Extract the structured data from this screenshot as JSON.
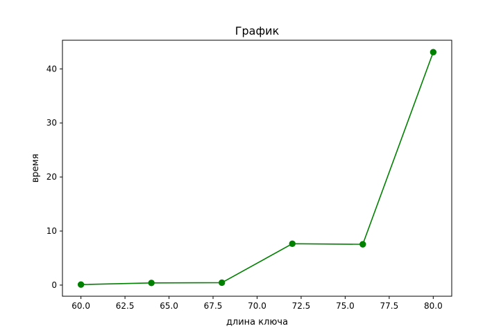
{
  "chart_data": {
    "type": "line",
    "title": "График",
    "xlabel": "длина ключа",
    "ylabel": "время",
    "xlim": [
      58.95,
      81.05
    ],
    "ylim": [
      -2.06,
      45.3
    ],
    "xticks": [
      60.0,
      62.5,
      65.0,
      67.5,
      70.0,
      72.5,
      75.0,
      77.5,
      80.0
    ],
    "xtick_labels": [
      "60.0",
      "62.5",
      "65.0",
      "67.5",
      "70.0",
      "72.5",
      "75.0",
      "77.5",
      "80.0"
    ],
    "yticks": [
      0,
      10,
      20,
      30,
      40
    ],
    "ytick_labels": [
      "0",
      "10",
      "20",
      "30",
      "40"
    ],
    "grid": false,
    "series": [
      {
        "color": "#008000",
        "marker": "circle",
        "x": [
          60,
          64,
          68,
          72,
          76,
          80
        ],
        "y": [
          0.1,
          0.4,
          0.45,
          7.65,
          7.55,
          43.1
        ]
      }
    ]
  }
}
